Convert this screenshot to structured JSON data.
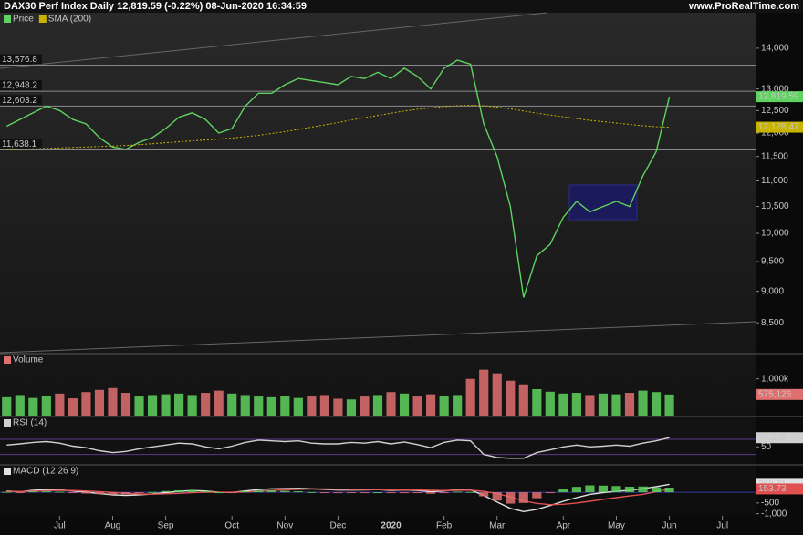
{
  "header": {
    "title": "DAX30 Perf Index Daily 12,819.59 (-0.22%) 08-Jun-2020 16:34:59",
    "site": "www.ProRealTime.com"
  },
  "chart_data": [
    {
      "type": "line",
      "log": true,
      "categories": [
        null,
        null,
        null,
        null,
        "Jul",
        null,
        null,
        null,
        "Aug",
        null,
        null,
        null,
        "Sep",
        null,
        null,
        null,
        null,
        "Oct",
        null,
        null,
        null,
        "Nov",
        null,
        null,
        null,
        "Dec",
        null,
        null,
        null,
        "2020",
        null,
        null,
        null,
        "Feb",
        null,
        null,
        null,
        "Mar",
        null,
        null,
        null,
        null,
        "Apr",
        null,
        null,
        null,
        "May",
        null,
        null,
        null,
        "Jun",
        null,
        null,
        null,
        "Jul",
        null,
        null
      ],
      "series": [
        {
          "name": "Price",
          "color": "#5fd35f",
          "last_label": "12,819.59",
          "values": [
            12150,
            12300,
            12450,
            12600,
            12500,
            12300,
            12200,
            11900,
            11700,
            11650,
            11800,
            11900,
            12100,
            12350,
            12450,
            12300,
            12000,
            12100,
            12600,
            12900,
            12900,
            13100,
            13250,
            13200,
            13150,
            13100,
            13300,
            13250,
            13400,
            13250,
            13500,
            13300,
            13000,
            13500,
            13700,
            13600,
            12200,
            11500,
            10500,
            8900,
            9600,
            9800,
            10300,
            10600,
            10400,
            10500,
            10600,
            10500,
            11100,
            11600,
            12819.59,
            null,
            null,
            null,
            null,
            null,
            null
          ]
        },
        {
          "name": "SMA (200)",
          "color": "#c8b400",
          "last_label": "12,128.47",
          "dotted": true,
          "values": [
            11640,
            11650,
            11660,
            11670,
            11680,
            11690,
            11700,
            11710,
            11720,
            11730,
            11750,
            11770,
            11790,
            11810,
            11830,
            11850,
            11870,
            11890,
            11920,
            11950,
            11990,
            12030,
            12080,
            12130,
            12180,
            12230,
            12290,
            12340,
            12390,
            12440,
            12490,
            12530,
            12560,
            12590,
            12610,
            12620,
            12610,
            12580,
            12540,
            12490,
            12440,
            12400,
            12360,
            12320,
            12280,
            12250,
            12220,
            12190,
            12160,
            12140,
            12128.47,
            null,
            null,
            null,
            null,
            null,
            null
          ]
        }
      ],
      "ylim": [
        8050,
        14590
      ],
      "yticks": [
        {
          "value": 14000,
          "label": "14,000"
        },
        {
          "value": 13000,
          "label": "13,000"
        },
        {
          "value": 12500,
          "label": "12,500"
        },
        {
          "value": 12000,
          "label": "12,000"
        },
        {
          "value": 11500,
          "label": "11,500"
        },
        {
          "value": 11000,
          "label": "11,000"
        },
        {
          "value": 10500,
          "label": "10,500"
        },
        {
          "value": 10000,
          "label": "10,000"
        },
        {
          "value": 9500,
          "label": "9,500"
        },
        {
          "value": 9000,
          "label": "9,000"
        },
        {
          "value": 8500,
          "label": "8,500"
        }
      ],
      "levels": [
        {
          "value": 13576.8,
          "label": "13,576.8"
        },
        {
          "value": 12948.2,
          "label": "12,948.2"
        },
        {
          "value": 12603.2,
          "label": "12,603.2"
        },
        {
          "value": 11638.1,
          "label": "11,638.1"
        }
      ]
    },
    {
      "type": "bar",
      "up_color": "#5fd35f",
      "down_color": "#e07070",
      "series": [
        {
          "name": "Volume",
          "color": "#e07070",
          "last_label": "575,126",
          "values": [
            500000,
            560000,
            480000,
            530000,
            600000,
            470000,
            640000,
            700000,
            750000,
            620000,
            520000,
            560000,
            580000,
            600000,
            560000,
            620000,
            680000,
            600000,
            560000,
            520000,
            500000,
            540000,
            480000,
            520000,
            560000,
            460000,
            440000,
            520000,
            560000,
            640000,
            600000,
            520000,
            580000,
            540000,
            560000,
            1000000,
            1250000,
            1150000,
            950000,
            850000,
            720000,
            650000,
            600000,
            620000,
            560000,
            600000,
            580000,
            620000,
            680000,
            640000,
            575126,
            null,
            null,
            null,
            null,
            null,
            null
          ]
        }
      ],
      "ylim": [
        0,
        1390000
      ],
      "yticks": [
        {
          "value": 1000000,
          "label": "1,000k"
        }
      ]
    },
    {
      "type": "line",
      "bands": [
        30,
        70
      ],
      "series": [
        {
          "name": "RSI (14)",
          "color": "#d0d0d0",
          "last_label": "74.335",
          "values": [
            55,
            58,
            62,
            64,
            60,
            52,
            48,
            40,
            35,
            38,
            45,
            50,
            55,
            60,
            58,
            50,
            45,
            52,
            62,
            68,
            66,
            64,
            66,
            60,
            58,
            58,
            62,
            60,
            64,
            58,
            63,
            56,
            48,
            62,
            68,
            66,
            30,
            22,
            20,
            20,
            35,
            42,
            50,
            55,
            50,
            52,
            55,
            52,
            60,
            66,
            74.335,
            null,
            null,
            null,
            null,
            null,
            null
          ]
        }
      ],
      "ylim": [
        5,
        99
      ],
      "yticks": [
        50
      ]
    },
    {
      "type": "macd",
      "up_color": "#5fd35f",
      "down_color": "#e07070",
      "series": [
        {
          "name": "MACD (12 26 9)",
          "color": "#e0e0e0",
          "last_label": "368.81",
          "values": [
            60,
            20,
            90,
            120,
            110,
            60,
            0,
            -60,
            -120,
            -150,
            -120,
            -80,
            -20,
            40,
            80,
            60,
            0,
            -10,
            60,
            120,
            160,
            170,
            180,
            160,
            130,
            100,
            100,
            110,
            120,
            90,
            100,
            80,
            20,
            60,
            120,
            110,
            -150,
            -450,
            -750,
            -900,
            -800,
            -620,
            -420,
            -250,
            -100,
            -20,
            40,
            90,
            170,
            260,
            368.81,
            null,
            null,
            null,
            null,
            null,
            null
          ]
        },
        {
          "color": "#e05050",
          "last_label": "153.73",
          "values": [
            40,
            35,
            50,
            70,
            85,
            80,
            60,
            30,
            -10,
            -50,
            -80,
            -90,
            -75,
            -50,
            -20,
            0,
            0,
            0,
            10,
            40,
            80,
            110,
            135,
            150,
            150,
            140,
            130,
            125,
            120,
            115,
            110,
            105,
            90,
            80,
            90,
            95,
            40,
            -60,
            -220,
            -400,
            -520,
            -580,
            -560,
            -500,
            -420,
            -330,
            -250,
            -170,
            -100,
            30,
            153.73,
            null,
            null,
            null,
            null,
            null,
            null
          ]
        },
        {
          "histogram": true,
          "values": [
            20,
            -15,
            40,
            50,
            25,
            -20,
            -60,
            -90,
            -110,
            -100,
            -40,
            10,
            55,
            90,
            100,
            60,
            0,
            -10,
            50,
            80,
            80,
            60,
            45,
            10,
            -20,
            -40,
            -30,
            -15,
            0,
            -25,
            -10,
            -25,
            -70,
            -20,
            30,
            15,
            -190,
            -390,
            -530,
            -500,
            -280,
            -40,
            140,
            250,
            320,
            310,
            290,
            260,
            270,
            230,
            215.08,
            null,
            null,
            null,
            null,
            null,
            null
          ]
        }
      ],
      "ylim": [
        -1100,
        767
      ],
      "yticks": [
        {
          "value": -500,
          "label": "-500"
        },
        {
          "value": -1000,
          "label": "-1,000"
        }
      ]
    }
  ]
}
